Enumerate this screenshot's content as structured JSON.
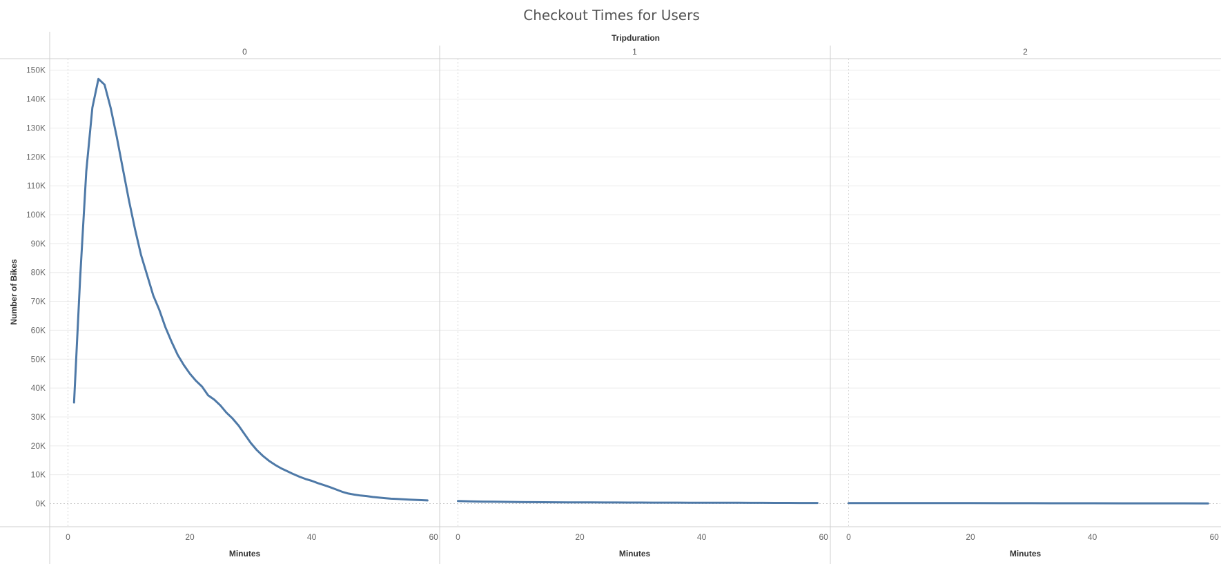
{
  "chart_data": {
    "type": "line",
    "title": "Checkout Times for Users",
    "column_header": "Tripduration",
    "ylabel": "Number of Bikes",
    "xlabel": "Minutes",
    "ylim": [
      -8000,
      154000
    ],
    "xlim": [
      -3,
      61
    ],
    "y_ticks": [
      0,
      10000,
      20000,
      30000,
      40000,
      50000,
      60000,
      70000,
      80000,
      90000,
      100000,
      110000,
      120000,
      130000,
      140000,
      150000
    ],
    "y_tick_labels": [
      "0K",
      "10K",
      "20K",
      "30K",
      "40K",
      "50K",
      "60K",
      "70K",
      "80K",
      "90K",
      "100K",
      "110K",
      "120K",
      "130K",
      "140K",
      "150K"
    ],
    "x_ticks": [
      0,
      20,
      40,
      60
    ],
    "x_tick_labels": [
      "0",
      "20",
      "40",
      "60"
    ],
    "grid": true,
    "line_color": "#4e79a7",
    "panels": [
      {
        "label": "0",
        "x": [
          1,
          2,
          3,
          4,
          5,
          6,
          7,
          8,
          9,
          10,
          11,
          12,
          13,
          14,
          15,
          16,
          17,
          18,
          19,
          20,
          21,
          22,
          23,
          24,
          25,
          26,
          27,
          28,
          29,
          30,
          31,
          32,
          33,
          34,
          35,
          36,
          37,
          38,
          39,
          40,
          41,
          42,
          43,
          44,
          45,
          46,
          47,
          48,
          49,
          50,
          51,
          52,
          53,
          54,
          55,
          56,
          57,
          58,
          59
        ],
        "y": [
          35000,
          78000,
          115000,
          137000,
          147000,
          145000,
          137000,
          127000,
          116000,
          105000,
          95000,
          86000,
          79000,
          72000,
          67000,
          61000,
          56000,
          51500,
          48000,
          45000,
          42500,
          40500,
          37500,
          36000,
          34000,
          31500,
          29500,
          27000,
          24000,
          21000,
          18500,
          16500,
          14800,
          13400,
          12200,
          11200,
          10200,
          9300,
          8500,
          7900,
          7100,
          6400,
          5700,
          4900,
          4100,
          3500,
          3100,
          2800,
          2600,
          2300,
          2100,
          1900,
          1700,
          1600,
          1500,
          1400,
          1300,
          1200,
          1100
        ]
      },
      {
        "label": "1",
        "x": [
          0,
          2,
          4,
          6,
          8,
          10,
          12,
          14,
          16,
          18,
          20,
          22,
          24,
          26,
          28,
          30,
          32,
          34,
          36,
          38,
          40,
          42,
          44,
          46,
          48,
          50,
          52,
          54,
          56,
          58,
          59
        ],
        "y": [
          900,
          800,
          700,
          650,
          600,
          550,
          500,
          480,
          460,
          440,
          420,
          400,
          390,
          380,
          370,
          360,
          350,
          340,
          330,
          320,
          310,
          300,
          290,
          280,
          270,
          260,
          250,
          240,
          230,
          220,
          210
        ]
      },
      {
        "label": "2",
        "x": [
          0,
          5,
          10,
          15,
          20,
          25,
          30,
          35,
          40,
          45,
          50,
          55,
          59
        ],
        "y": [
          200,
          190,
          180,
          170,
          160,
          150,
          140,
          130,
          120,
          110,
          100,
          90,
          80
        ]
      }
    ]
  }
}
